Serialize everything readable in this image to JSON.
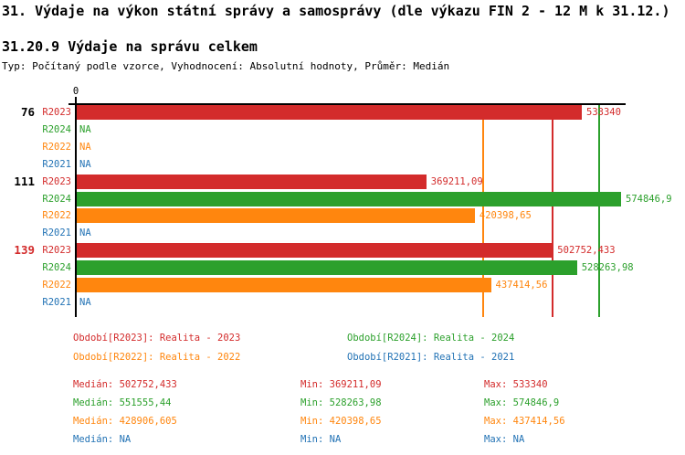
{
  "page": {
    "title": "31. Výdaje na výkon státní správy a samosprávy (dle výkazu FIN 2 - 12 M k 31.12.)",
    "subtitle": "31.20.9 Výdaje na správu celkem",
    "meta": "Typ: Počítaný podle vzorce, Vyhodnocení: Absolutní hodnoty, Průměr: Medián"
  },
  "chart_data": {
    "type": "bar",
    "orientation": "horizontal",
    "title": "31.20.9 Výdaje na správu celkem",
    "xlim": [
      0,
      580000
    ],
    "axis_origin_label": "0",
    "grid": false,
    "series_colors": {
      "R2023": "#d32b2b",
      "R2024": "#2ca02c",
      "R2022": "#ff860e",
      "R2021": "#2373b5"
    },
    "groups": [
      {
        "label": "76",
        "rows": [
          {
            "series": "R2023",
            "value": 533340,
            "display": "533340"
          },
          {
            "series": "R2024",
            "value": null,
            "display": "NA"
          },
          {
            "series": "R2022",
            "value": null,
            "display": "NA"
          },
          {
            "series": "R2021",
            "value": null,
            "display": "NA"
          }
        ]
      },
      {
        "label": "111",
        "rows": [
          {
            "series": "R2023",
            "value": 369211.09,
            "display": "369211,09"
          },
          {
            "series": "R2024",
            "value": 574846.9,
            "display": "574846,9"
          },
          {
            "series": "R2022",
            "value": 420398.65,
            "display": "420398,65"
          },
          {
            "series": "R2021",
            "value": null,
            "display": "NA"
          }
        ]
      },
      {
        "label": "139",
        "rows": [
          {
            "series": "R2023",
            "value": 502752.433,
            "display": "502752,433"
          },
          {
            "series": "R2024",
            "value": 528263.98,
            "display": "528263,98"
          },
          {
            "series": "R2022",
            "value": 437414.56,
            "display": "437414,56"
          },
          {
            "series": "R2021",
            "value": null,
            "display": "NA"
          }
        ]
      }
    ],
    "median_lines": [
      {
        "series": "R2022",
        "value": 428906.605
      },
      {
        "series": "R2023",
        "value": 502752.433
      },
      {
        "series": "R2024",
        "value": 551555.44
      }
    ]
  },
  "legend": {
    "items": [
      {
        "label": "Období[R2023]: Realita - 2023"
      },
      {
        "label": "Období[R2024]: Realita - 2024"
      },
      {
        "label": "Období[R2022]: Realita - 2022"
      },
      {
        "label": "Období[R2021]: Realita - 2021"
      }
    ]
  },
  "stats": {
    "median_label": "Medián:",
    "min_label": "Min:",
    "max_label": "Max:",
    "rows": [
      {
        "series": "R2023",
        "median": "502752,433",
        "min": "369211,09",
        "max": "533340"
      },
      {
        "series": "R2024",
        "median": "551555,44",
        "min": "528263,98",
        "max": "574846,9"
      },
      {
        "series": "R2022",
        "median": "428906,605",
        "min": "420398,65",
        "max": "437414,56"
      },
      {
        "series": "R2021",
        "median": "NA",
        "min": "NA",
        "max": "NA"
      }
    ]
  }
}
